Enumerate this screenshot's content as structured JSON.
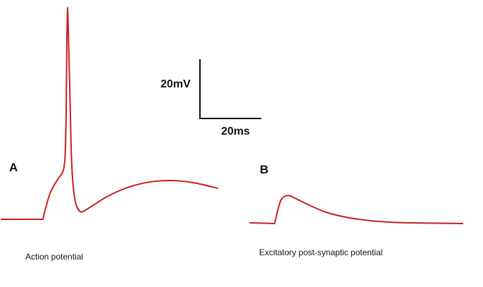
{
  "scale_bar": {
    "voltage_label": "20mV",
    "time_label": "20ms"
  },
  "panel_a": {
    "letter": "A",
    "caption": "Action potential"
  },
  "panel_b": {
    "letter": "B",
    "caption": "Excitatory post-synaptic potential"
  },
  "colors": {
    "trace": "#c8201e",
    "scale_bar": "#111111",
    "text": "#111111"
  }
}
